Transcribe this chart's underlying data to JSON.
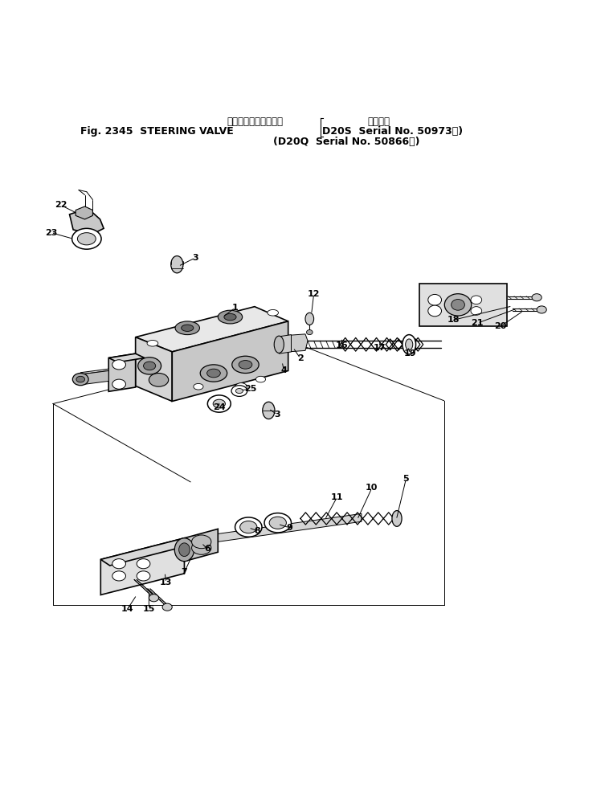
{
  "title_line1": "ステアリング　バルブ",
  "title_line2": "Fig. 2345  STEERING VALVE",
  "title_line3": "適用号機",
  "title_line4": "D20S  Serial No. 50973～",
  "title_line5": "(D20Q  Serial No. 50866～)",
  "bg_color": "#ffffff",
  "line_color": "#000000"
}
